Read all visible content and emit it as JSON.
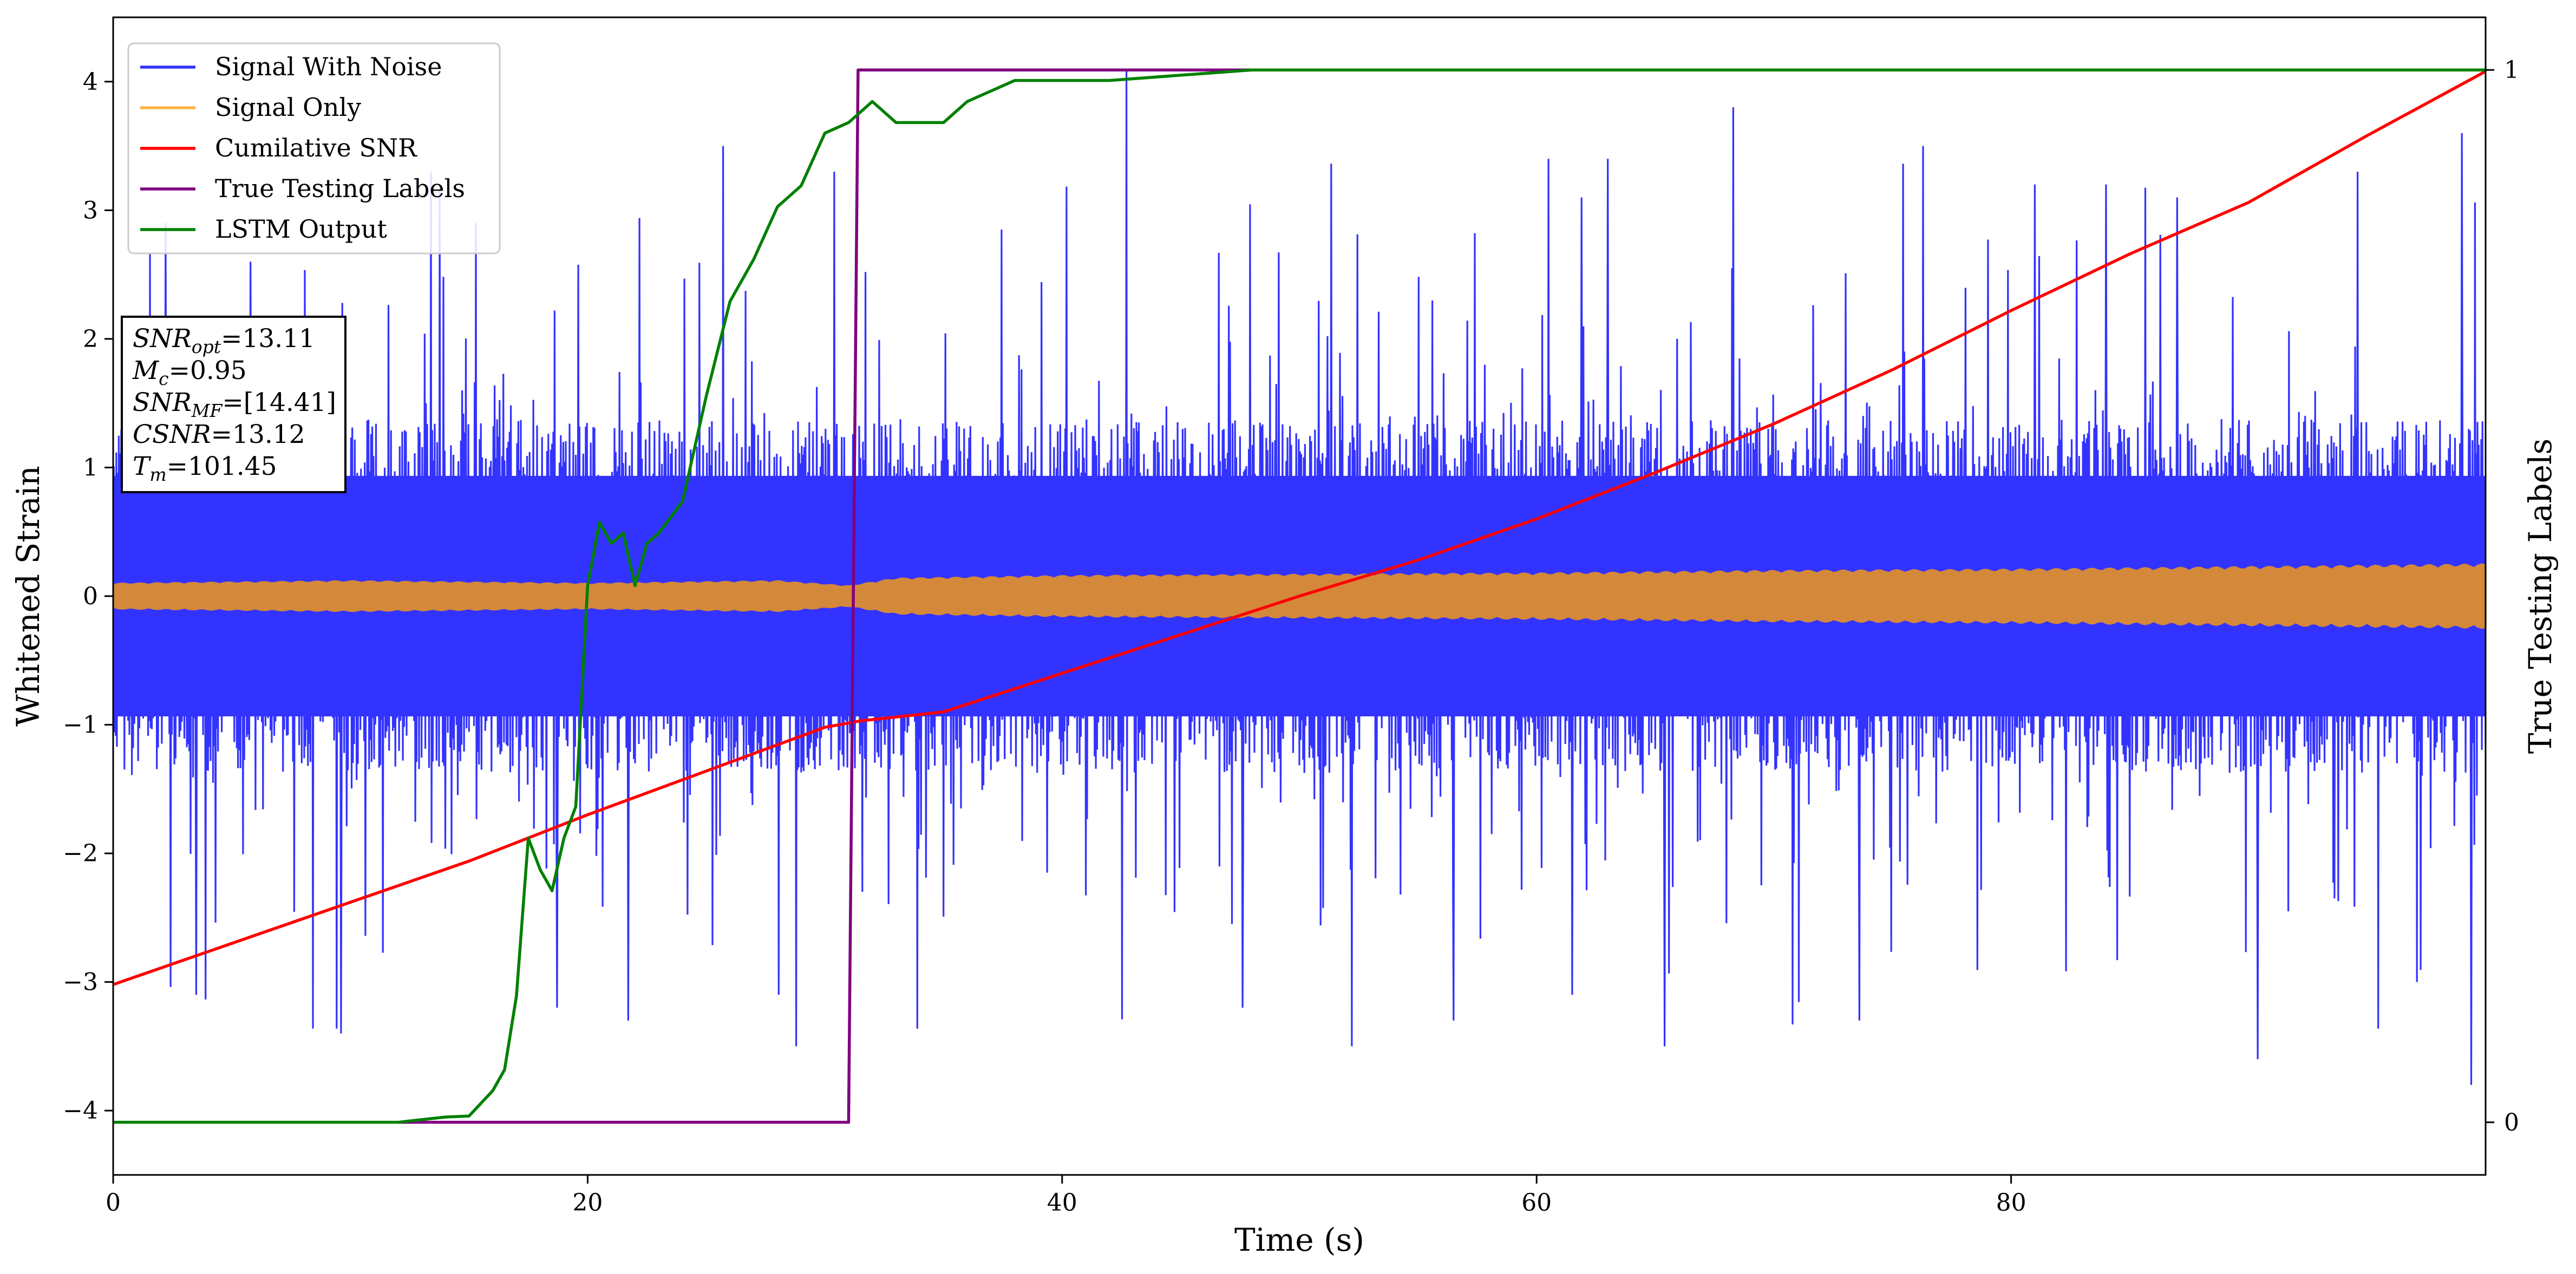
{
  "chart_data": {
    "type": "line",
    "title": "",
    "xlabel": "Time (s)",
    "ylabel": "Whitened Strain",
    "ylabel_right": "True Testing Labels",
    "xlim": [
      0,
      100
    ],
    "ylim": [
      -4.5,
      4.5
    ],
    "ylim_right": [
      -0.05,
      1.05
    ],
    "x_ticks": [
      0,
      20,
      40,
      60,
      80
    ],
    "y_ticks": [
      -4,
      -3,
      -2,
      -1,
      0,
      1,
      2,
      3,
      4
    ],
    "y_ticks_right": [
      0,
      1
    ],
    "grid": false,
    "legend_position": "top-left",
    "legend": [
      {
        "label": "Signal With Noise",
        "color": "#3333ff"
      },
      {
        "label": "Signal Only",
        "color": "#ffb347"
      },
      {
        "label": "Cumilative SNR",
        "color": "#ff0000"
      },
      {
        "label": "True Testing Labels",
        "color": "#800080"
      },
      {
        "label": "LSTM Output",
        "color": "#008000"
      }
    ],
    "series": [
      {
        "name": "Signal With Noise",
        "axis": "left",
        "color": "#3333ff",
        "style": "dense-noise",
        "core_amplitude": 1.1,
        "typical_peak": 2.3,
        "max_abs": 4.1,
        "spikes": [
          [
            2.2,
            2.9
          ],
          [
            3.5,
            -3.1
          ],
          [
            5.8,
            2.6
          ],
          [
            9.6,
            -3.4
          ],
          [
            13.4,
            3.3
          ],
          [
            15.3,
            2.9
          ],
          [
            18.7,
            -3.2
          ],
          [
            21.7,
            -3.3
          ],
          [
            25.7,
            3.5
          ],
          [
            28.8,
            -3.5
          ],
          [
            30.4,
            3.3
          ],
          [
            42.7,
            4.1
          ],
          [
            47.6,
            -3.2
          ],
          [
            52.2,
            -3.5
          ],
          [
            56.5,
            -3.3
          ],
          [
            60.5,
            3.4
          ],
          [
            61.5,
            -3.1
          ],
          [
            61.9,
            3.1
          ],
          [
            63.0,
            3.4
          ],
          [
            65.4,
            -3.5
          ],
          [
            68.3,
            3.8
          ],
          [
            73.6,
            -3.3
          ],
          [
            76.3,
            3.5
          ],
          [
            81.0,
            3.2
          ],
          [
            84.0,
            3.2
          ],
          [
            87.0,
            3.1
          ],
          [
            90.4,
            -3.6
          ],
          [
            94.6,
            3.3
          ],
          [
            97.1,
            -3.0
          ],
          [
            99.0,
            3.6
          ],
          [
            99.4,
            -3.8
          ]
        ]
      },
      {
        "name": "Signal Only",
        "axis": "left",
        "color": "#d4883a",
        "style": "envelope",
        "x": [
          0,
          10,
          20,
          28,
          31,
          33,
          40,
          50,
          60,
          70,
          80,
          90,
          100
        ],
        "amplitude": [
          0.1,
          0.12,
          0.1,
          0.12,
          0.08,
          0.14,
          0.16,
          0.17,
          0.18,
          0.2,
          0.21,
          0.23,
          0.25
        ]
      },
      {
        "name": "Cumilative SNR",
        "axis": "left",
        "color": "#ff0000",
        "x": [
          0,
          5,
          10,
          15,
          20,
          25,
          30,
          31.5,
          35,
          40,
          45,
          50,
          55,
          60,
          65,
          70,
          75,
          80,
          85,
          90,
          95,
          100
        ],
        "y": [
          -3.02,
          -2.7,
          -2.38,
          -2.06,
          -1.7,
          -1.36,
          -1.02,
          -0.97,
          -0.9,
          -0.6,
          -0.3,
          0.0,
          0.28,
          0.6,
          0.96,
          1.34,
          1.76,
          2.22,
          2.66,
          3.06,
          3.58,
          4.08
        ]
      },
      {
        "name": "True Testing Labels",
        "axis": "right",
        "color": "#800080",
        "x": [
          0,
          31.0,
          31.4,
          100
        ],
        "y": [
          0,
          0,
          1,
          1
        ]
      },
      {
        "name": "LSTM Output",
        "axis": "right",
        "color": "#008000",
        "x": [
          0,
          12,
          14,
          15,
          16,
          16.5,
          17,
          17.5,
          18,
          18.5,
          19,
          19.5,
          20,
          20.5,
          21,
          21.5,
          22,
          22.5,
          23,
          24,
          25,
          26,
          27,
          28,
          29,
          30,
          31,
          32,
          33,
          34,
          35,
          36,
          37,
          38,
          39,
          40,
          42,
          45,
          48,
          50,
          55,
          60,
          100
        ],
        "y": [
          0,
          0,
          0.005,
          0.006,
          0.03,
          0.05,
          0.12,
          0.27,
          0.24,
          0.22,
          0.27,
          0.3,
          0.51,
          0.57,
          0.55,
          0.56,
          0.51,
          0.55,
          0.56,
          0.59,
          0.69,
          0.78,
          0.82,
          0.87,
          0.89,
          0.94,
          0.95,
          0.97,
          0.95,
          0.95,
          0.95,
          0.97,
          0.98,
          0.99,
          0.99,
          0.99,
          0.99,
          0.995,
          1.0,
          1.0,
          1.0,
          1.0,
          1.0
        ]
      }
    ],
    "annotation_box": {
      "lines": [
        {
          "symbol": "SNR",
          "sub": "opt",
          "value": "=13.11"
        },
        {
          "symbol": "M",
          "sub": "c",
          "value": "=0.95"
        },
        {
          "symbol": "SNR",
          "sub": "MF",
          "value": "=[14.41]"
        },
        {
          "symbol": "CSNR",
          "sub": "",
          "value": "=13.12"
        },
        {
          "symbol": "T",
          "sub": "m",
          "value": "=101.45"
        }
      ]
    }
  }
}
